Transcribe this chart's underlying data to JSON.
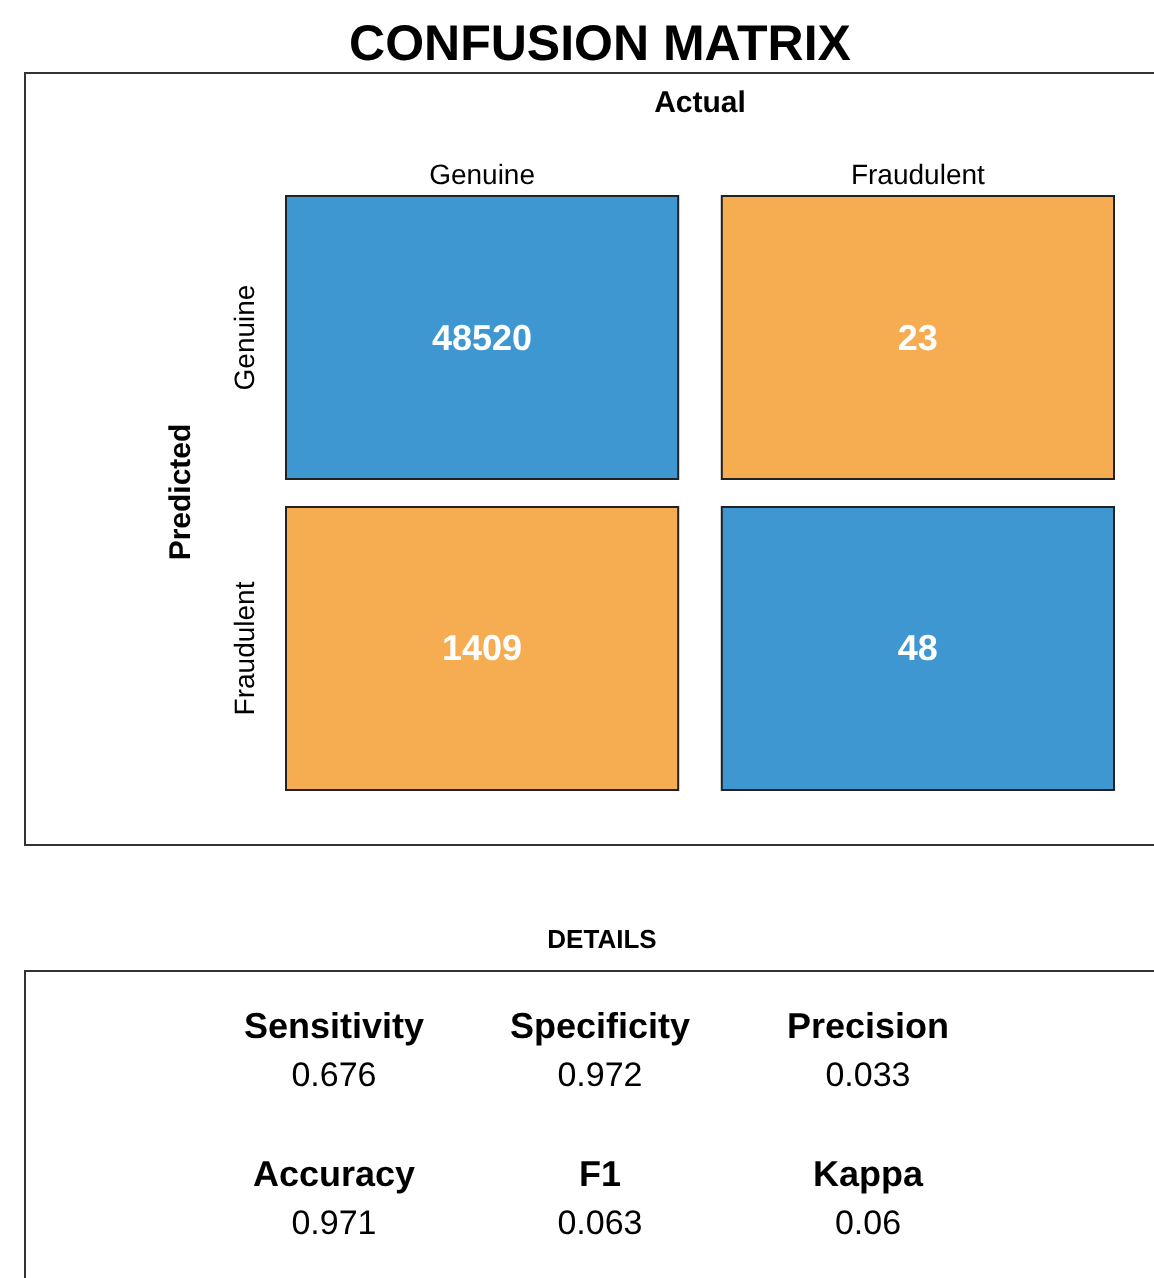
{
  "chart_data": [
    {
      "type": "heatmap",
      "title": "CONFUSION MATRIX",
      "xlabel": "Actual",
      "ylabel": "Predicted",
      "categories": [
        "Genuine",
        "Fraudulent"
      ],
      "y_categories": [
        "Genuine",
        "Fraudulent"
      ],
      "cells": [
        [
          48520,
          23
        ],
        [
          1409,
          48
        ]
      ],
      "colors": [
        [
          "#3e97d0",
          "#f6ad52"
        ],
        [
          "#f6ad52",
          "#3e97d0"
        ]
      ],
      "data_labels": true
    },
    {
      "type": "other",
      "title": "DETAILS",
      "categories": [
        "Sensitivity",
        "Specificity",
        "Precision",
        "Accuracy",
        "F1",
        "Kappa"
      ],
      "values": [
        0.676,
        0.972,
        0.033,
        0.971,
        0.063,
        0.06
      ],
      "data_labels": true
    }
  ]
}
